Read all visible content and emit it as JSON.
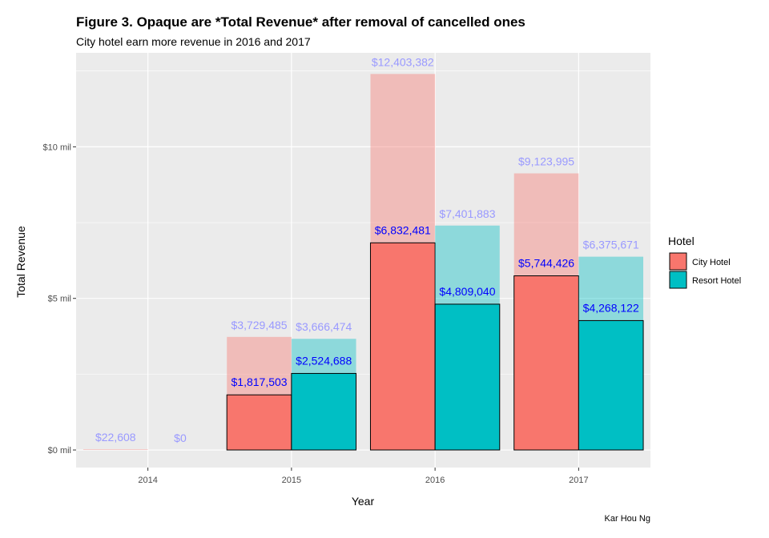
{
  "chart_data": {
    "type": "bar",
    "title": "Figure 3. Opaque are *Total Revenue* after removal of cancelled ones",
    "subtitle": "City hotel earn more revenue in 2016 and 2017",
    "xlabel": "Year",
    "ylabel": "Total Revenue",
    "caption": "Kar Hou Ng",
    "categories": [
      "2014",
      "2015",
      "2016",
      "2017"
    ],
    "ylim": [
      -0.58,
      13.1
    ],
    "yticks": [
      {
        "value": 0,
        "label": "$0 mil"
      },
      {
        "value": 5,
        "label": "$5 mil"
      },
      {
        "value": 10,
        "label": "$10 mil"
      }
    ],
    "grid": true,
    "legend": {
      "title": "Hotel",
      "position": "right"
    },
    "series": [
      {
        "name": "City Hotel",
        "color": "#F8766D",
        "total_values": [
          22608,
          3729485,
          12403382,
          9123995
        ],
        "total_labels": [
          "$22,608",
          "$3,729,485",
          "$12,403,382",
          "$9,123,995"
        ],
        "net_values": [
          null,
          1817503,
          6832481,
          5744426
        ],
        "net_labels": [
          "",
          "$1,817,503",
          "$6,832,481",
          "$5,744,426"
        ]
      },
      {
        "name": "Resort Hotel",
        "color": "#00BFC4",
        "total_values": [
          0,
          3666474,
          7401883,
          6375671
        ],
        "total_labels": [
          "$0",
          "$3,666,474",
          "$7,401,883",
          "$6,375,671"
        ],
        "net_values": [
          null,
          2524688,
          4809040,
          4268122
        ],
        "net_labels": [
          "",
          "$2,524,688",
          "$4,809,040",
          "$4,268,122"
        ]
      }
    ],
    "total_label_color": "#9999FF",
    "net_label_color": "#0000FF"
  }
}
